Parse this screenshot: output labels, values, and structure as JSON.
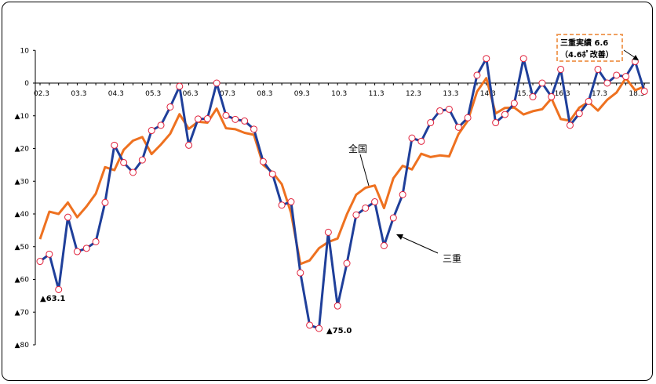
{
  "chart_data": {
    "type": "line",
    "title": "",
    "xlabel": "",
    "ylabel": "",
    "ylim": [
      -80,
      10
    ],
    "yticks": [
      {
        "v": 10,
        "label": "10"
      },
      {
        "v": 0,
        "label": "0"
      },
      {
        "v": -10,
        "label": "▲10"
      },
      {
        "v": -20,
        "label": "▲20"
      },
      {
        "v": -30,
        "label": "▲30"
      },
      {
        "v": -40,
        "label": "▲40"
      },
      {
        "v": -50,
        "label": "▲50"
      },
      {
        "v": -60,
        "label": "▲60"
      },
      {
        "v": -70,
        "label": "▲70"
      },
      {
        "v": -80,
        "label": "▲80"
      }
    ],
    "xtick_labels": [
      {
        "i": 0,
        "label": "02.3"
      },
      {
        "i": 4,
        "label": "03.3"
      },
      {
        "i": 8,
        "label": "04.3"
      },
      {
        "i": 12,
        "label": "05.3"
      },
      {
        "i": 16,
        "label": "06.3"
      },
      {
        "i": 20,
        "label": "07.3"
      },
      {
        "i": 24,
        "label": "08.3"
      },
      {
        "i": 28,
        "label": "09.3"
      },
      {
        "i": 32,
        "label": "10.3"
      },
      {
        "i": 36,
        "label": "11.3"
      },
      {
        "i": 40,
        "label": "12.3"
      },
      {
        "i": 44,
        "label": "13.3"
      },
      {
        "i": 48,
        "label": "14.3"
      },
      {
        "i": 52,
        "label": "15.3"
      },
      {
        "i": 56,
        "label": "16.3"
      },
      {
        "i": 60,
        "label": "17.3"
      },
      {
        "i": 64,
        "label": "18.3"
      }
    ],
    "series": [
      {
        "name": "三重",
        "color": "#1f3f9a",
        "marker": "circle-open-red",
        "values": [
          -54.5,
          -52.3,
          -63.1,
          -41,
          -51.5,
          -50.5,
          -48.5,
          -36.5,
          -19,
          -24.3,
          -27.3,
          -23.5,
          -14.5,
          -12.9,
          -7.3,
          -1,
          -19,
          -11,
          -10.9,
          0,
          -9.9,
          -11.1,
          -11.6,
          -14.1,
          -24,
          -27.8,
          -37.3,
          -36.3,
          -58,
          -74,
          -75,
          -45.6,
          -68.1,
          -55.1,
          -40.3,
          -38.2,
          -36.3,
          -49.7,
          -41.2,
          -34.1,
          -16.8,
          -17.8,
          -12.1,
          -8.5,
          -8,
          -13.5,
          -10.6,
          2.4,
          7.5,
          -12.1,
          -9.6,
          -6.2,
          7.5,
          -4.2,
          0,
          -4.2,
          4.2,
          -12.9,
          -9.3,
          -5.6,
          4.2,
          0,
          2.4,
          2,
          6.6,
          -2.5
        ]
      },
      {
        "name": "全国",
        "color": "#ee7120",
        "marker": "none",
        "values": [
          -47.7,
          -39.3,
          -40,
          -36.5,
          -41,
          -37.7,
          -33.8,
          -25.7,
          -26.6,
          -20.4,
          -17.6,
          -16.5,
          -21.7,
          -18.8,
          -15.5,
          -9.5,
          -14,
          -11.8,
          -12.1,
          -7.8,
          -13.8,
          -14.1,
          -15.2,
          -15.8,
          -25,
          -27.3,
          -30.9,
          -39.7,
          -55.3,
          -54.2,
          -50.5,
          -48.6,
          -47.5,
          -40.1,
          -34.1,
          -32,
          -31.3,
          -38.2,
          -29.1,
          -25.3,
          -26.4,
          -21.6,
          -22.6,
          -22.1,
          -22.4,
          -15.6,
          -11.5,
          -2.6,
          1.5,
          -9.3,
          -7.6,
          -7.5,
          -9.6,
          -8.6,
          -8,
          -4.7,
          -11,
          -11.5,
          -7.5,
          -5.8,
          -8.4,
          -5.1,
          -2.9,
          1.5,
          -2.2,
          -1
        ]
      }
    ],
    "annotations": {
      "min1": "▲63.1",
      "min2": "▲75.0",
      "zenkoku_label": "全国",
      "mie_label": "三重",
      "callout_line1": "三重実績 6.6",
      "callout_line2": "（4.6ﾎﾟ改善）"
    }
  }
}
